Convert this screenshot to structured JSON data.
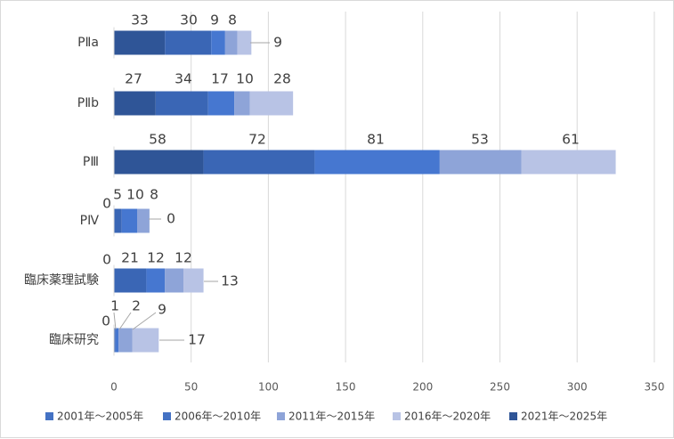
{
  "chart_data": {
    "type": "bar",
    "orientation": "horizontal",
    "stacked": true,
    "categories": [
      "PⅡa",
      "PⅡb",
      "PⅢ",
      "PⅣ",
      "臨床薬理試験",
      "臨床研究"
    ],
    "series": [
      {
        "name": "2001年～2005年",
        "values": [
          33,
          27,
          58,
          0,
          0,
          0
        ],
        "color": "#2F5597"
      },
      {
        "name": "2006年～2010年",
        "values": [
          30,
          34,
          72,
          5,
          21,
          1
        ],
        "color": "#3A66B5"
      },
      {
        "name": "2011年～2015年",
        "values": [
          9,
          17,
          81,
          10,
          12,
          2
        ],
        "color": "#4677D0"
      },
      {
        "name": "2016年～2020年",
        "values": [
          8,
          10,
          53,
          8,
          12,
          9
        ],
        "color": "#8EA4D8"
      },
      {
        "name": "2021年～2025年",
        "values": [
          9,
          28,
          61,
          0,
          13,
          17
        ],
        "color": "#B8C3E5"
      }
    ],
    "legend_series": [
      {
        "name": "2001年～2005年",
        "color": "#4472C4"
      },
      {
        "name": "2006年～2010年",
        "color": "#4472C4"
      },
      {
        "name": "2011年～2015年",
        "color": "#8EA4D8"
      },
      {
        "name": "2016年～2020年",
        "color": "#B8C3E5"
      },
      {
        "name": "2021年～2025年",
        "color": "#2F5597"
      }
    ],
    "xlim": [
      0,
      350
    ],
    "xticks": [
      0,
      50,
      100,
      150,
      200,
      250,
      300,
      350
    ],
    "grid": true,
    "legend_position": "bottom",
    "title": "",
    "xlabel": "",
    "ylabel": ""
  }
}
